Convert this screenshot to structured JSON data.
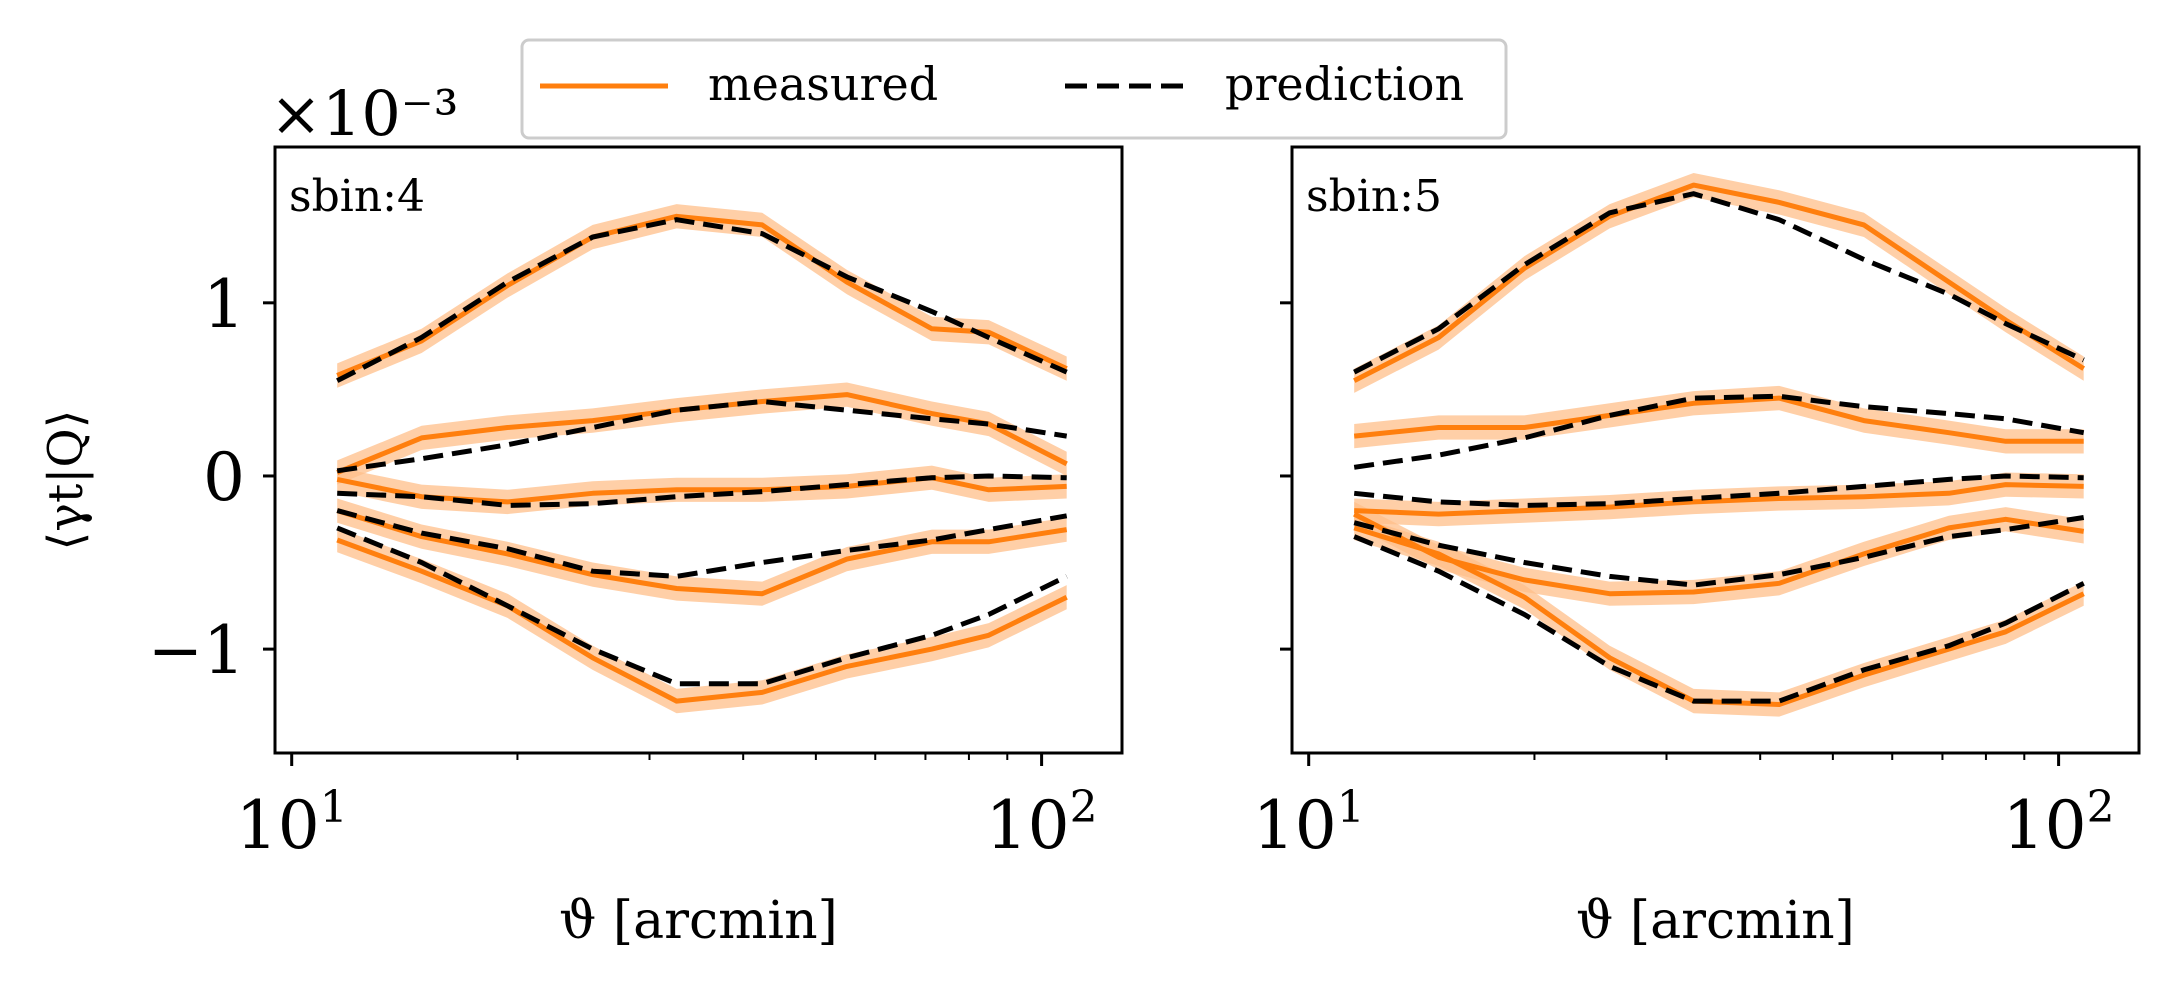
{
  "figure": {
    "exponent_label": "×10⁻³",
    "ylabel": "⟨γt|Q⟩",
    "legend": {
      "position": "top-center"
    }
  },
  "chart_data": [
    {
      "type": "line",
      "panel_label": "sbin:4",
      "xscale": "log",
      "xlim": [
        9.5,
        128
      ],
      "ylim": [
        -1.6,
        1.9
      ],
      "y_scale_factor": "1e-3",
      "xlabel": "ϑ [arcmin]",
      "ylabel": "⟨γt|Q⟩",
      "xticks": [
        {
          "value": 10,
          "base": "10",
          "exp": "1"
        },
        {
          "value": 100,
          "base": "10",
          "exp": "2"
        }
      ],
      "yticks": [
        {
          "value": 1,
          "label": "1"
        },
        {
          "value": 0,
          "label": "0"
        },
        {
          "value": -1,
          "label": "−1"
        }
      ],
      "x": [
        11.5,
        14.9,
        19.4,
        25.2,
        32.6,
        42.4,
        55.0,
        71.4,
        85.0,
        108.0
      ],
      "band_halfwidth": 0.07,
      "series": [
        {
          "name": "measured",
          "group": 1,
          "values": [
            0.58,
            0.78,
            1.1,
            1.38,
            1.5,
            1.45,
            1.12,
            0.85,
            0.83,
            0.62
          ]
        },
        {
          "name": "prediction",
          "group": 1,
          "values": [
            0.55,
            0.8,
            1.12,
            1.38,
            1.48,
            1.4,
            1.15,
            0.95,
            0.8,
            0.6
          ]
        },
        {
          "name": "measured",
          "group": 2,
          "values": [
            0.02,
            0.22,
            0.28,
            0.32,
            0.38,
            0.43,
            0.47,
            0.36,
            0.3,
            0.07
          ]
        },
        {
          "name": "prediction",
          "group": 2,
          "values": [
            0.03,
            0.1,
            0.18,
            0.28,
            0.38,
            0.43,
            0.38,
            0.33,
            0.3,
            0.23
          ]
        },
        {
          "name": "measured",
          "group": 3,
          "values": [
            -0.02,
            -0.12,
            -0.15,
            -0.1,
            -0.08,
            -0.08,
            -0.06,
            -0.01,
            -0.08,
            -0.06
          ]
        },
        {
          "name": "prediction",
          "group": 3,
          "values": [
            -0.1,
            -0.12,
            -0.17,
            -0.16,
            -0.12,
            -0.09,
            -0.05,
            -0.01,
            0.0,
            -0.01
          ]
        },
        {
          "name": "measured",
          "group": 4,
          "values": [
            -0.2,
            -0.35,
            -0.45,
            -0.57,
            -0.65,
            -0.68,
            -0.48,
            -0.38,
            -0.38,
            -0.31
          ]
        },
        {
          "name": "prediction",
          "group": 4,
          "values": [
            -0.2,
            -0.33,
            -0.42,
            -0.55,
            -0.58,
            -0.5,
            -0.43,
            -0.37,
            -0.31,
            -0.23
          ]
        },
        {
          "name": "measured",
          "group": 5,
          "values": [
            -0.37,
            -0.55,
            -0.75,
            -1.05,
            -1.3,
            -1.25,
            -1.1,
            -1.0,
            -0.92,
            -0.7
          ]
        },
        {
          "name": "prediction",
          "group": 5,
          "values": [
            -0.3,
            -0.5,
            -0.75,
            -1.0,
            -1.2,
            -1.2,
            -1.05,
            -0.92,
            -0.8,
            -0.58
          ]
        }
      ]
    },
    {
      "type": "line",
      "panel_label": "sbin:5",
      "xscale": "log",
      "xlim": [
        9.5,
        128
      ],
      "ylim": [
        -1.6,
        1.9
      ],
      "y_scale_factor": "1e-3",
      "xlabel": "ϑ [arcmin]",
      "ylabel": "",
      "xticks": [
        {
          "value": 10,
          "base": "10",
          "exp": "1"
        },
        {
          "value": 100,
          "base": "10",
          "exp": "2"
        }
      ],
      "yticks": [],
      "x": [
        11.5,
        14.9,
        19.4,
        25.2,
        32.6,
        42.4,
        55.0,
        71.4,
        85.0,
        108.0
      ],
      "band_halfwidth": 0.07,
      "series": [
        {
          "name": "measured",
          "group": 1,
          "values": [
            0.55,
            0.8,
            1.2,
            1.5,
            1.68,
            1.58,
            1.45,
            1.12,
            0.9,
            0.62
          ]
        },
        {
          "name": "prediction",
          "group": 1,
          "values": [
            0.6,
            0.85,
            1.22,
            1.52,
            1.63,
            1.48,
            1.25,
            1.05,
            0.88,
            0.67
          ]
        },
        {
          "name": "measured",
          "group": 2,
          "values": [
            0.23,
            0.28,
            0.28,
            0.35,
            0.42,
            0.45,
            0.32,
            0.25,
            0.2,
            0.2
          ]
        },
        {
          "name": "prediction",
          "group": 2,
          "values": [
            0.05,
            0.12,
            0.22,
            0.35,
            0.45,
            0.46,
            0.4,
            0.36,
            0.33,
            0.25
          ]
        },
        {
          "name": "measured",
          "group": 3,
          "values": [
            -0.2,
            -0.22,
            -0.2,
            -0.18,
            -0.15,
            -0.13,
            -0.12,
            -0.1,
            -0.05,
            -0.06
          ]
        },
        {
          "name": "prediction",
          "group": 3,
          "values": [
            -0.1,
            -0.15,
            -0.17,
            -0.16,
            -0.13,
            -0.1,
            -0.06,
            -0.02,
            0.0,
            -0.01
          ]
        },
        {
          "name": "measured",
          "group": 4,
          "values": [
            -0.22,
            -0.47,
            -0.6,
            -0.68,
            -0.67,
            -0.62,
            -0.45,
            -0.3,
            -0.25,
            -0.32
          ]
        },
        {
          "name": "prediction",
          "group": 4,
          "values": [
            -0.27,
            -0.4,
            -0.5,
            -0.58,
            -0.63,
            -0.57,
            -0.47,
            -0.35,
            -0.31,
            -0.24
          ]
        },
        {
          "name": "measured",
          "group": 5,
          "values": [
            -0.3,
            -0.45,
            -0.7,
            -1.05,
            -1.3,
            -1.32,
            -1.15,
            -1.0,
            -0.9,
            -0.68
          ]
        },
        {
          "name": "prediction",
          "group": 5,
          "values": [
            -0.35,
            -0.55,
            -0.8,
            -1.1,
            -1.3,
            -1.3,
            -1.12,
            -0.98,
            -0.85,
            -0.62
          ]
        }
      ]
    }
  ],
  "legend": {
    "items": [
      {
        "label": "measured",
        "style": "solid",
        "color": "#ff7f0e"
      },
      {
        "label": "prediction",
        "style": "dashed",
        "color": "#000000"
      }
    ]
  },
  "colors": {
    "measured": "#ff7f0e",
    "band": "#ffbf8a",
    "prediction": "#000000"
  }
}
